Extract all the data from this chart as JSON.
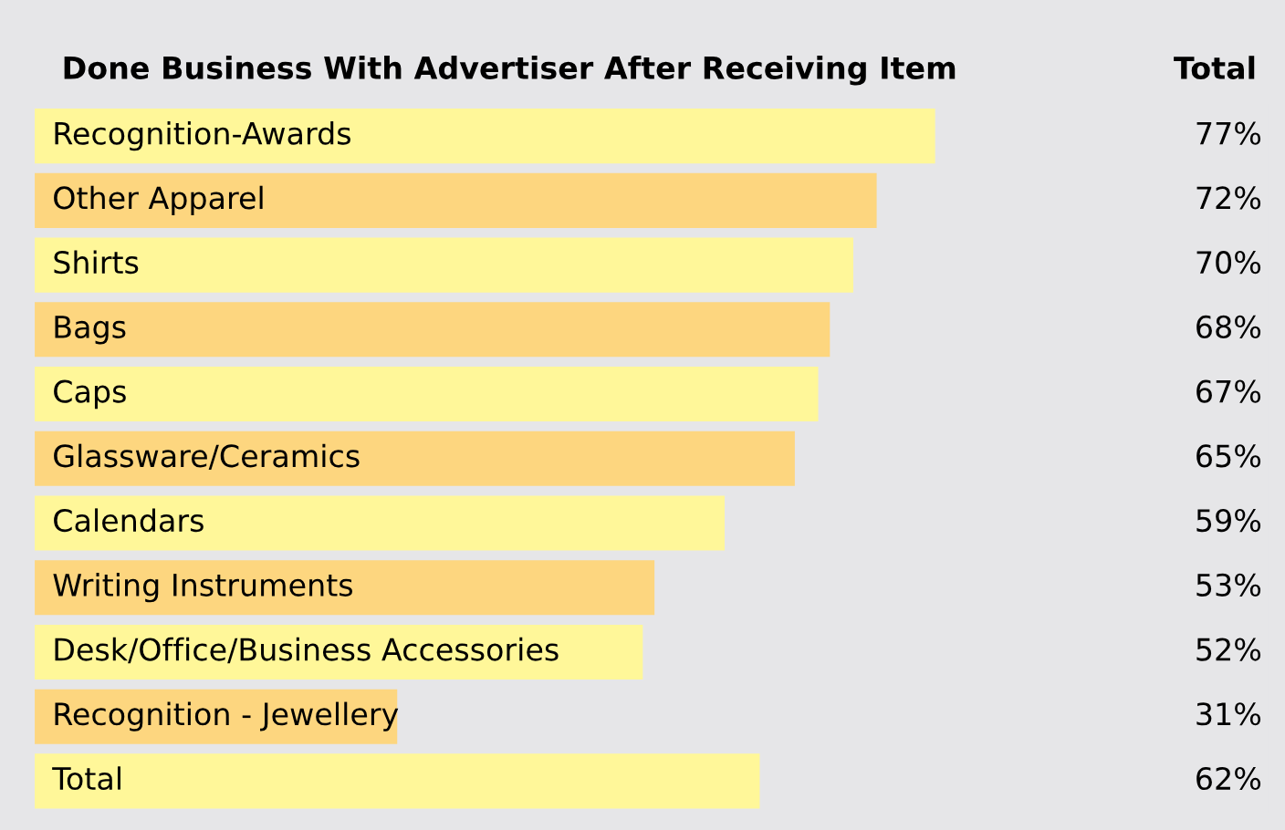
{
  "chart_data": {
    "type": "bar",
    "orientation": "horizontal",
    "title": "Done Business With Advertiser After Receiving Item",
    "annotations": [
      "Total"
    ],
    "categories": [
      "Recognition-Awards",
      "Other Apparel",
      "Shirts",
      "Bags",
      "Caps",
      "Glassware/Ceramics",
      "Calendars",
      "Writing Instruments",
      "Desk/Office/Business Accessories",
      "Recognition - Jewellery",
      "Total"
    ],
    "values": [
      77,
      72,
      70,
      68,
      67,
      65,
      59,
      53,
      52,
      31,
      62
    ],
    "value_labels": [
      "77%",
      "72%",
      "70%",
      "68%",
      "67%",
      "65%",
      "59%",
      "53%",
      "52%",
      "31%",
      "62%"
    ],
    "colors": [
      "#fff799",
      "#fdd67f",
      "#fff799",
      "#fdd67f",
      "#fff799",
      "#fdd67f",
      "#fff799",
      "#fdd67f",
      "#fff799",
      "#fdd67f",
      "#fff799"
    ]
  }
}
